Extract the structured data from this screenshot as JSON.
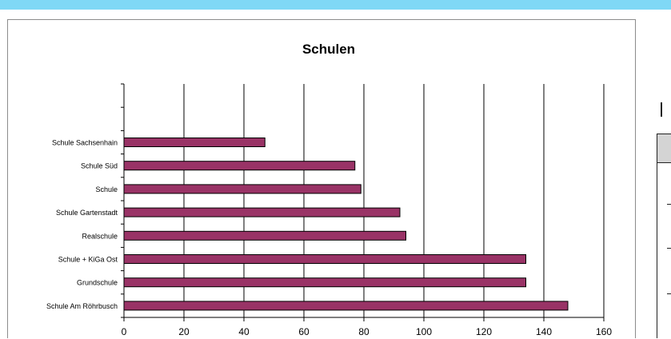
{
  "chart_data": {
    "type": "bar",
    "orientation": "horizontal",
    "title": "Schulen",
    "xlabel": "",
    "ylabel": "",
    "categories": [
      "Schule Sachsenhain",
      "Schule Süd",
      "Schule",
      "Schule Gartenstadt",
      "Realschule",
      "Schule + KiGa Ost",
      "Grundschule",
      "Schule Am Röhrbusch"
    ],
    "values": [
      47,
      77,
      79,
      92,
      94,
      134,
      134,
      148
    ],
    "xlim": [
      0,
      160
    ],
    "xticks": [
      "0",
      "20",
      "40",
      "60",
      "80",
      "100",
      "120",
      "140",
      "160"
    ],
    "grid": "vertical",
    "legend": "none",
    "bar_color": "#993366",
    "grid_color": "#000000"
  }
}
